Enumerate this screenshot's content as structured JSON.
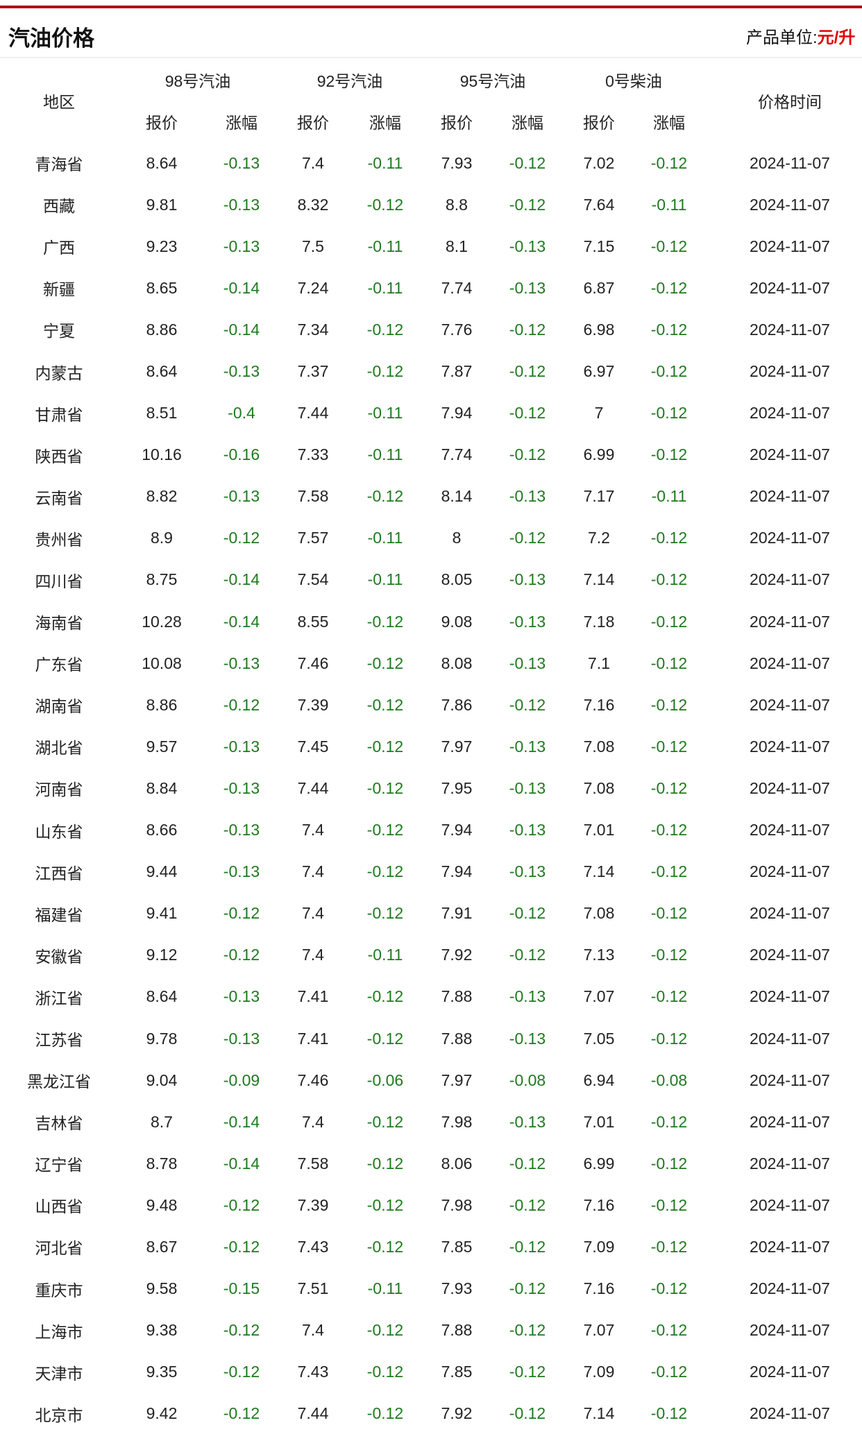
{
  "header": {
    "title": "汽油价格",
    "unit_label": "产品单位:",
    "unit_value": "元/升"
  },
  "table": {
    "region_header": "地区",
    "groups": [
      "98号汽油",
      "92号汽油",
      "95号汽油",
      "0号柴油"
    ],
    "sub_price": "报价",
    "sub_change": "涨幅",
    "time_header": "价格时间",
    "rows": [
      [
        "青海省",
        "8.64",
        "-0.13",
        "7.4",
        "-0.11",
        "7.93",
        "-0.12",
        "7.02",
        "-0.12",
        "2024-11-07"
      ],
      [
        "西藏",
        "9.81",
        "-0.13",
        "8.32",
        "-0.12",
        "8.8",
        "-0.12",
        "7.64",
        "-0.11",
        "2024-11-07"
      ],
      [
        "广西",
        "9.23",
        "-0.13",
        "7.5",
        "-0.11",
        "8.1",
        "-0.13",
        "7.15",
        "-0.12",
        "2024-11-07"
      ],
      [
        "新疆",
        "8.65",
        "-0.14",
        "7.24",
        "-0.11",
        "7.74",
        "-0.13",
        "6.87",
        "-0.12",
        "2024-11-07"
      ],
      [
        "宁夏",
        "8.86",
        "-0.14",
        "7.34",
        "-0.12",
        "7.76",
        "-0.12",
        "6.98",
        "-0.12",
        "2024-11-07"
      ],
      [
        "内蒙古",
        "8.64",
        "-0.13",
        "7.37",
        "-0.12",
        "7.87",
        "-0.12",
        "6.97",
        "-0.12",
        "2024-11-07"
      ],
      [
        "甘肃省",
        "8.51",
        "-0.4",
        "7.44",
        "-0.11",
        "7.94",
        "-0.12",
        "7",
        "-0.12",
        "2024-11-07"
      ],
      [
        "陕西省",
        "10.16",
        "-0.16",
        "7.33",
        "-0.11",
        "7.74",
        "-0.12",
        "6.99",
        "-0.12",
        "2024-11-07"
      ],
      [
        "云南省",
        "8.82",
        "-0.13",
        "7.58",
        "-0.12",
        "8.14",
        "-0.13",
        "7.17",
        "-0.11",
        "2024-11-07"
      ],
      [
        "贵州省",
        "8.9",
        "-0.12",
        "7.57",
        "-0.11",
        "8",
        "-0.12",
        "7.2",
        "-0.12",
        "2024-11-07"
      ],
      [
        "四川省",
        "8.75",
        "-0.14",
        "7.54",
        "-0.11",
        "8.05",
        "-0.13",
        "7.14",
        "-0.12",
        "2024-11-07"
      ],
      [
        "海南省",
        "10.28",
        "-0.14",
        "8.55",
        "-0.12",
        "9.08",
        "-0.13",
        "7.18",
        "-0.12",
        "2024-11-07"
      ],
      [
        "广东省",
        "10.08",
        "-0.13",
        "7.46",
        "-0.12",
        "8.08",
        "-0.13",
        "7.1",
        "-0.12",
        "2024-11-07"
      ],
      [
        "湖南省",
        "8.86",
        "-0.12",
        "7.39",
        "-0.12",
        "7.86",
        "-0.12",
        "7.16",
        "-0.12",
        "2024-11-07"
      ],
      [
        "湖北省",
        "9.57",
        "-0.13",
        "7.45",
        "-0.12",
        "7.97",
        "-0.13",
        "7.08",
        "-0.12",
        "2024-11-07"
      ],
      [
        "河南省",
        "8.84",
        "-0.13",
        "7.44",
        "-0.12",
        "7.95",
        "-0.13",
        "7.08",
        "-0.12",
        "2024-11-07"
      ],
      [
        "山东省",
        "8.66",
        "-0.13",
        "7.4",
        "-0.12",
        "7.94",
        "-0.13",
        "7.01",
        "-0.12",
        "2024-11-07"
      ],
      [
        "江西省",
        "9.44",
        "-0.13",
        "7.4",
        "-0.12",
        "7.94",
        "-0.13",
        "7.14",
        "-0.12",
        "2024-11-07"
      ],
      [
        "福建省",
        "9.41",
        "-0.12",
        "7.4",
        "-0.12",
        "7.91",
        "-0.12",
        "7.08",
        "-0.12",
        "2024-11-07"
      ],
      [
        "安徽省",
        "9.12",
        "-0.12",
        "7.4",
        "-0.11",
        "7.92",
        "-0.12",
        "7.13",
        "-0.12",
        "2024-11-07"
      ],
      [
        "浙江省",
        "8.64",
        "-0.13",
        "7.41",
        "-0.12",
        "7.88",
        "-0.13",
        "7.07",
        "-0.12",
        "2024-11-07"
      ],
      [
        "江苏省",
        "9.78",
        "-0.13",
        "7.41",
        "-0.12",
        "7.88",
        "-0.13",
        "7.05",
        "-0.12",
        "2024-11-07"
      ],
      [
        "黑龙江省",
        "9.04",
        "-0.09",
        "7.46",
        "-0.06",
        "7.97",
        "-0.08",
        "6.94",
        "-0.08",
        "2024-11-07"
      ],
      [
        "吉林省",
        "8.7",
        "-0.14",
        "7.4",
        "-0.12",
        "7.98",
        "-0.13",
        "7.01",
        "-0.12",
        "2024-11-07"
      ],
      [
        "辽宁省",
        "8.78",
        "-0.14",
        "7.58",
        "-0.12",
        "8.06",
        "-0.12",
        "6.99",
        "-0.12",
        "2024-11-07"
      ],
      [
        "山西省",
        "9.48",
        "-0.12",
        "7.39",
        "-0.12",
        "7.98",
        "-0.12",
        "7.16",
        "-0.12",
        "2024-11-07"
      ],
      [
        "河北省",
        "8.67",
        "-0.12",
        "7.43",
        "-0.12",
        "7.85",
        "-0.12",
        "7.09",
        "-0.12",
        "2024-11-07"
      ],
      [
        "重庆市",
        "9.58",
        "-0.15",
        "7.51",
        "-0.11",
        "7.93",
        "-0.12",
        "7.16",
        "-0.12",
        "2024-11-07"
      ],
      [
        "上海市",
        "9.38",
        "-0.12",
        "7.4",
        "-0.12",
        "7.88",
        "-0.12",
        "7.07",
        "-0.12",
        "2024-11-07"
      ],
      [
        "天津市",
        "9.35",
        "-0.12",
        "7.43",
        "-0.12",
        "7.85",
        "-0.12",
        "7.09",
        "-0.12",
        "2024-11-07"
      ],
      [
        "北京市",
        "9.42",
        "-0.12",
        "7.44",
        "-0.12",
        "7.92",
        "-0.12",
        "7.14",
        "-0.12",
        "2024-11-07"
      ]
    ]
  },
  "colors": {
    "accent_line": "#b30000",
    "unit_value": "#e00000",
    "change_text": "#1e7a1e"
  }
}
